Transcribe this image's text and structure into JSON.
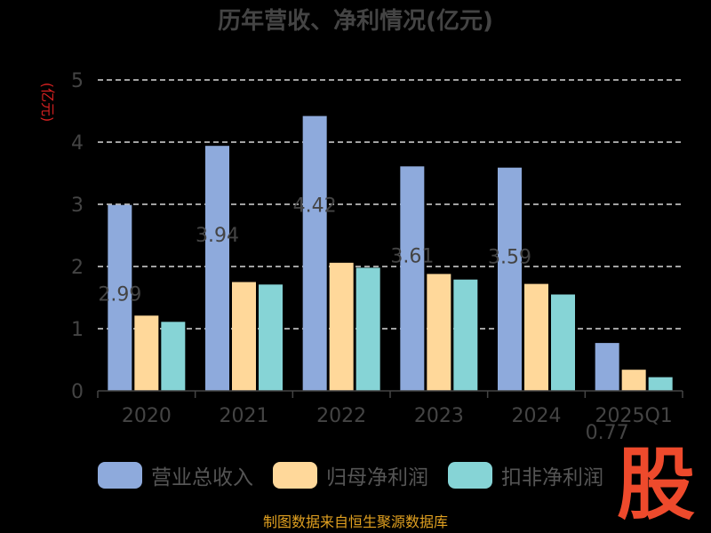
{
  "chart_data": {
    "type": "bar",
    "title": "历年营收、净利情况(亿元)",
    "ylabel": "(亿元)",
    "xlabel": "",
    "categories": [
      "2020",
      "2021",
      "2022",
      "2023",
      "2024",
      "2025Q1"
    ],
    "ylim": [
      0,
      5
    ],
    "yticks": [
      0,
      1,
      2,
      3,
      4,
      5
    ],
    "grid": true,
    "legend_position": "bottom",
    "series": [
      {
        "name": "营业总收入",
        "color": "#8eaadc",
        "values": [
          2.99,
          3.94,
          4.42,
          3.61,
          3.59,
          0.77
        ],
        "labels": [
          "2.99",
          "3.94",
          "4.42",
          "3.61",
          "3.59",
          "0.77"
        ]
      },
      {
        "name": "归母净利润",
        "color": "#ffd89a",
        "values": [
          1.21,
          1.75,
          2.06,
          1.88,
          1.72,
          0.34
        ]
      },
      {
        "name": "扣非净利润",
        "color": "#86d4d6",
        "values": [
          1.11,
          1.71,
          1.98,
          1.79,
          1.55,
          0.22
        ]
      }
    ]
  },
  "stamp_text": "股",
  "source_text": "制图数据来自恒生聚源数据库"
}
